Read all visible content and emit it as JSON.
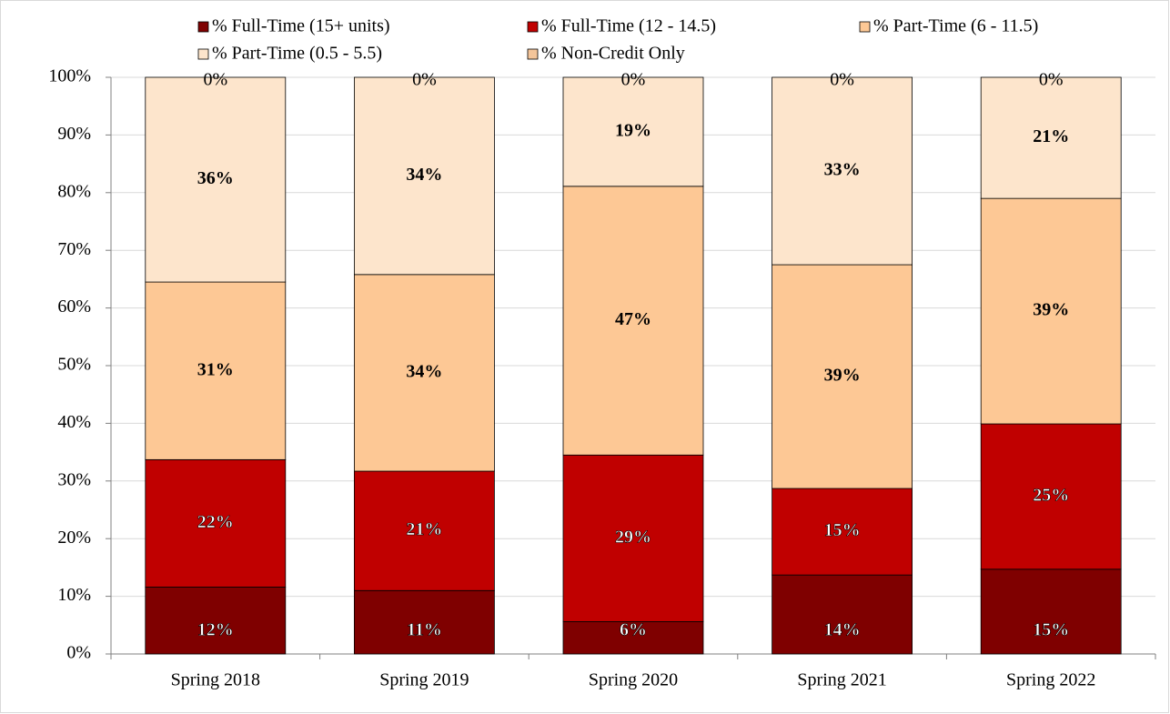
{
  "chart_data": {
    "type": "stacked_bar",
    "categories": [
      "Spring 2018",
      "Spring 2019",
      "Spring 2020",
      "Spring 2021",
      "Spring 2022"
    ],
    "series": [
      {
        "name": "% Full-Time (15+ units)",
        "color": "#7f0000",
        "values": [
          11.6,
          11.0,
          5.6,
          13.7,
          14.7
        ],
        "value_labels": [
          "12%",
          "11%",
          "6%",
          "14%",
          "15%"
        ]
      },
      {
        "name": "% Full-Time (12 - 14.5)",
        "color": "#c00000",
        "values": [
          22.1,
          20.7,
          28.9,
          15.0,
          25.2
        ],
        "value_labels": [
          "22%",
          "21%",
          "29%",
          "15%",
          "25%"
        ]
      },
      {
        "name": "% Part-Time (6 - 11.5)",
        "color": "#fdc895",
        "values": [
          30.8,
          34.1,
          46.6,
          38.8,
          39.1
        ],
        "value_labels": [
          "31%",
          "34%",
          "47%",
          "39%",
          "39%"
        ]
      },
      {
        "name": "% Part-Time (0.5 - 5.5)",
        "color": "#fde5cc",
        "values": [
          35.5,
          34.2,
          18.9,
          32.5,
          21.0
        ],
        "value_labels": [
          "36%",
          "34%",
          "19%",
          "33%",
          "21%"
        ]
      },
      {
        "name": "% Non-Credit Only",
        "color": "#f4c59a",
        "values": [
          0,
          0,
          0,
          0,
          0
        ],
        "value_labels": [
          "0%",
          "0%",
          "0%",
          "0%",
          "0%"
        ]
      }
    ],
    "ylim": [
      0,
      100
    ],
    "yticks": [
      {
        "value": 0,
        "label": "0%"
      },
      {
        "value": 10,
        "label": "10%"
      },
      {
        "value": 20,
        "label": "20%"
      },
      {
        "value": 30,
        "label": "30%"
      },
      {
        "value": 40,
        "label": "40%"
      },
      {
        "value": 50,
        "label": "50%"
      },
      {
        "value": 60,
        "label": "60%"
      },
      {
        "value": 70,
        "label": "70%"
      },
      {
        "value": 80,
        "label": "80%"
      },
      {
        "value": 90,
        "label": "90%"
      },
      {
        "value": 100,
        "label": "100%"
      }
    ],
    "grid": true,
    "legend": "top"
  }
}
